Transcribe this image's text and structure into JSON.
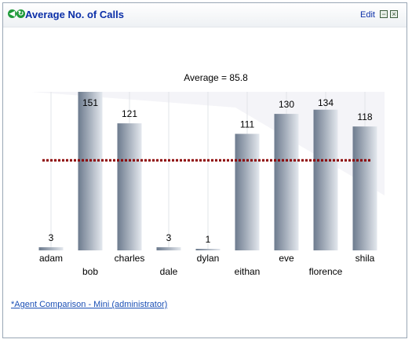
{
  "widget": {
    "title": "Average No. of Calls",
    "edit_label": "Edit",
    "minimize_symbol": "−",
    "close_symbol": "×",
    "footer_link": "*Agent Comparison - Mini (administrator)",
    "icons": {
      "back": "green-back-arrow-icon",
      "refresh": "green-refresh-icon"
    }
  },
  "chart_data": {
    "type": "bar",
    "title": "Average = 85.8",
    "average": 85.8,
    "categories": [
      "adam",
      "bob",
      "charles",
      "dale",
      "dylan",
      "eithan",
      "eve",
      "florence",
      "shila"
    ],
    "values": [
      3,
      151,
      121,
      3,
      1,
      111,
      130,
      134,
      118
    ],
    "ylim": [
      0,
      151
    ],
    "xlabel": "",
    "ylabel": "",
    "colors": {
      "bar": "#7f8fa3",
      "average_line": "#8b0000"
    }
  }
}
